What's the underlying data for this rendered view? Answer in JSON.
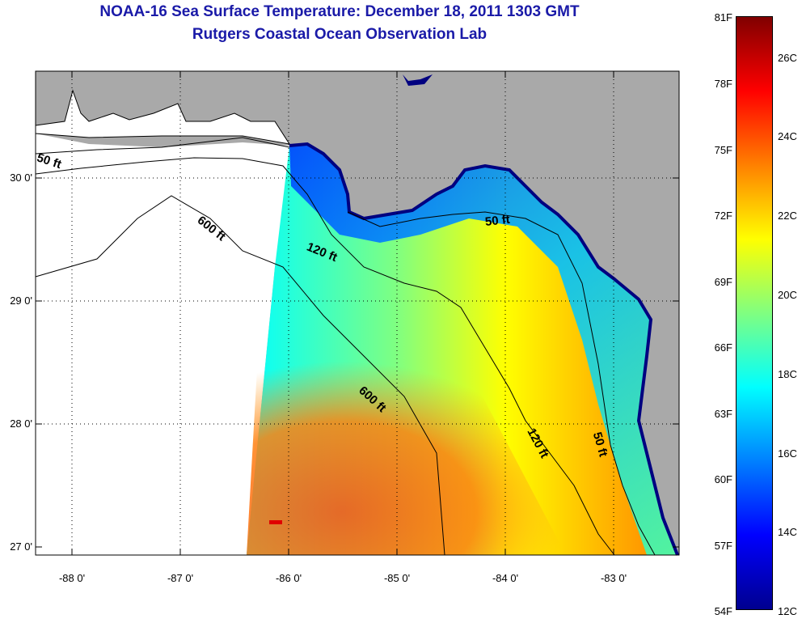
{
  "title": {
    "line1": "NOAA-16 Sea Surface Temperature:  December 18, 2011 1303 GMT",
    "line2": "Rutgers Coastal Ocean Observation Lab"
  },
  "map": {
    "y_labels": [
      "30 0'",
      "29 0'",
      "28 0'",
      "27 0'"
    ],
    "x_labels": [
      "-88 0'",
      "-87 0'",
      "-86 0'",
      "-85 0'",
      "-84 0'",
      "-83 0'"
    ],
    "contour_labels": [
      "50 ft",
      "600 ft",
      "120 ft",
      "50 ft",
      "600 ft",
      "120 ft",
      "50 ft"
    ]
  },
  "colorbar": {
    "fahrenheit": [
      "81F",
      "78F",
      "75F",
      "72F",
      "69F",
      "66F",
      "63F",
      "60F",
      "57F",
      "54F"
    ],
    "celsius": [
      "26C",
      "24C",
      "22C",
      "20C",
      "18C",
      "16C",
      "14C",
      "12C"
    ],
    "colors": [
      "#00008f",
      "#0000ff",
      "#0080ff",
      "#00ffff",
      "#80ff80",
      "#ffff00",
      "#ff8000",
      "#ff0000",
      "#800000"
    ]
  },
  "colors": {
    "title": "#1a1aa8",
    "land": "#a9a9a9",
    "no_data": "#ffffff"
  }
}
